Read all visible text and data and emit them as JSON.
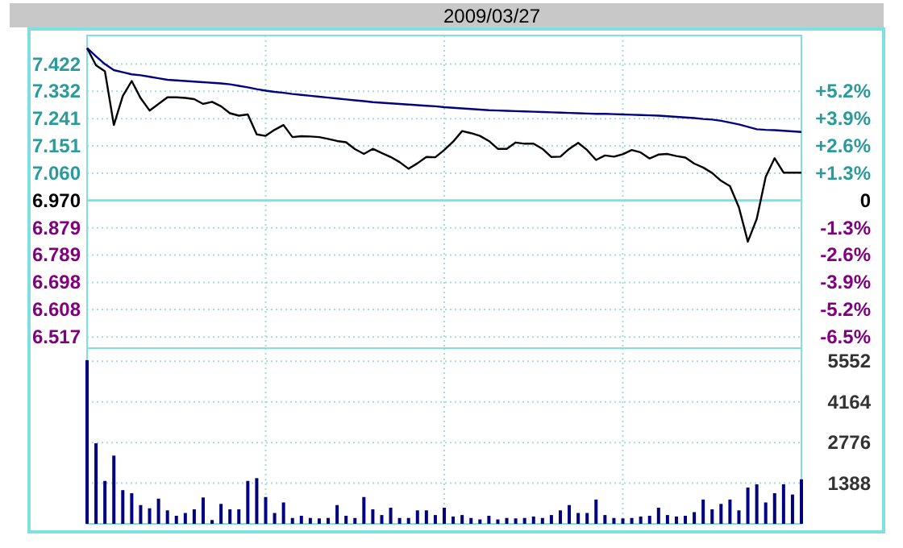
{
  "chart_data": [
    {
      "type": "line",
      "title": "2009/03/27",
      "categories": [
        null,
        null,
        null,
        null,
        null,
        null,
        null,
        null,
        null,
        null,
        null,
        null,
        null,
        null,
        null,
        null,
        null,
        null,
        null,
        null,
        null,
        null,
        null,
        null,
        null,
        null,
        null,
        null,
        null,
        null,
        null,
        null,
        null,
        null,
        null,
        null,
        null,
        null,
        null,
        null,
        null,
        null,
        null,
        null,
        null,
        null,
        null,
        null,
        null,
        null,
        null,
        null,
        null,
        null,
        null,
        null,
        null,
        null,
        null,
        null,
        null,
        null,
        null,
        null,
        null,
        null,
        null,
        null,
        null,
        null,
        null,
        null,
        null,
        null,
        null,
        null,
        null,
        null,
        null,
        null,
        null
      ],
      "ylim": [
        6.48,
        7.517
      ],
      "yticks": [
        {
          "value": 7.422,
          "label": "7.422"
        },
        {
          "value": 7.332,
          "label": "7.332"
        },
        {
          "value": 7.241,
          "label": "7.241"
        },
        {
          "value": 7.151,
          "label": "7.151"
        },
        {
          "value": 7.06,
          "label": "7.060"
        },
        {
          "value": 6.97,
          "label": "6.970"
        },
        {
          "value": 6.879,
          "label": "6.879"
        },
        {
          "value": 6.789,
          "label": "6.789"
        },
        {
          "value": 6.698,
          "label": "6.698"
        },
        {
          "value": 6.608,
          "label": "6.608"
        },
        {
          "value": 6.517,
          "label": "6.517"
        }
      ],
      "y2lim": [
        -7.03,
        7.85
      ],
      "y2ticks": [
        {
          "value": 5.2,
          "label": "+5.2%"
        },
        {
          "value": 3.9,
          "label": "+3.9%"
        },
        {
          "value": 2.6,
          "label": "+2.6%"
        },
        {
          "value": 1.3,
          "label": "+1.3%"
        },
        0,
        {
          "value": -1.3,
          "label": "-1.3%"
        },
        {
          "value": -2.6,
          "label": "-2.6%"
        },
        {
          "value": -3.9,
          "label": "-3.9%"
        },
        {
          "value": -5.2,
          "label": "-5.2%"
        },
        {
          "value": -6.5,
          "label": "-6.5%"
        }
      ],
      "grid": true,
      "ref_lines": [
        {
          "axis": "y",
          "value": 6.97,
          "color": "#80e0e0"
        }
      ],
      "series": [
        {
          "color": "#000000",
          "values": [
            7.475,
            7.418,
            7.398,
            7.22,
            7.316,
            7.366,
            7.309,
            7.268,
            7.29,
            7.312,
            7.312,
            7.31,
            7.306,
            7.29,
            7.297,
            7.282,
            7.259,
            7.251,
            7.255,
            7.189,
            7.184,
            7.204,
            7.22,
            7.18,
            7.183,
            7.182,
            7.18,
            7.174,
            7.167,
            7.163,
            7.14,
            7.124,
            7.141,
            7.127,
            7.114,
            7.097,
            7.075,
            7.093,
            7.114,
            7.113,
            7.137,
            7.165,
            7.2,
            7.193,
            7.184,
            7.167,
            7.141,
            7.141,
            7.162,
            7.158,
            7.158,
            7.141,
            7.114,
            7.115,
            7.141,
            7.161,
            7.137,
            7.104,
            7.119,
            7.115,
            7.123,
            7.137,
            7.129,
            7.109,
            7.122,
            7.124,
            7.117,
            7.112,
            7.092,
            7.079,
            7.061,
            7.035,
            7.017,
            6.947,
            6.833,
            6.909,
            7.048,
            7.11,
            7.062,
            7.062,
            7.062
          ]
        },
        {
          "color": "#000080",
          "values": [
            7.475,
            7.448,
            7.422,
            7.402,
            7.395,
            7.388,
            7.385,
            7.38,
            7.375,
            7.37,
            7.368,
            7.366,
            7.364,
            7.362,
            7.36,
            7.358,
            7.355,
            7.35,
            7.345,
            7.339,
            7.334,
            7.33,
            7.327,
            7.323,
            7.32,
            7.317,
            7.314,
            7.311,
            7.308,
            7.305,
            7.302,
            7.299,
            7.296,
            7.294,
            7.292,
            7.29,
            7.288,
            7.286,
            7.284,
            7.282,
            7.279,
            7.277,
            7.275,
            7.273,
            7.271,
            7.269,
            7.268,
            7.267,
            7.266,
            7.265,
            7.264,
            7.263,
            7.262,
            7.261,
            7.26,
            7.259,
            7.258,
            7.257,
            7.257,
            7.256,
            7.255,
            7.254,
            7.253,
            7.252,
            7.251,
            7.249,
            7.247,
            7.245,
            7.243,
            7.24,
            7.238,
            7.234,
            7.228,
            7.222,
            7.214,
            7.206,
            7.204,
            7.203,
            7.201,
            7.199,
            7.197
          ]
        }
      ]
    },
    {
      "type": "bar",
      "color": "#000080",
      "categories": [
        null,
        null,
        null,
        null,
        null,
        null,
        null,
        null,
        null,
        null,
        null,
        null,
        null,
        null,
        null,
        null,
        null,
        null,
        null,
        null,
        null,
        null,
        null,
        null,
        null,
        null,
        null,
        null,
        null,
        null,
        null,
        null,
        null,
        null,
        null,
        null,
        null,
        null,
        null,
        null,
        null,
        null,
        null,
        null,
        null,
        null,
        null,
        null,
        null,
        null,
        null,
        null,
        null,
        null,
        null,
        null,
        null,
        null,
        null,
        null,
        null,
        null,
        null,
        null,
        null,
        null,
        null,
        null,
        null,
        null,
        null,
        null,
        null,
        null,
        null,
        null,
        null,
        null,
        null,
        null,
        null
      ],
      "ylim": [
        0,
        6000
      ],
      "yticks": [
        1388,
        2776,
        4164,
        5552
      ],
      "grid": true,
      "values": [
        5590,
        2750,
        1465,
        2330,
        1150,
        1045,
        640,
        530,
        860,
        460,
        275,
        370,
        495,
        900,
        130,
        680,
        495,
        495,
        1465,
        1560,
        915,
        370,
        730,
        200,
        275,
        200,
        185,
        200,
        640,
        275,
        200,
        915,
        495,
        300,
        550,
        200,
        200,
        460,
        460,
        300,
        550,
        250,
        300,
        200,
        150,
        275,
        150,
        200,
        185,
        200,
        250,
        200,
        300,
        460,
        640,
        370,
        370,
        830,
        300,
        200,
        185,
        200,
        250,
        275,
        550,
        300,
        250,
        275,
        400,
        830,
        495,
        680,
        830,
        460,
        1240,
        1350,
        730,
        1045,
        1350,
        1000,
        1520
      ]
    }
  ]
}
